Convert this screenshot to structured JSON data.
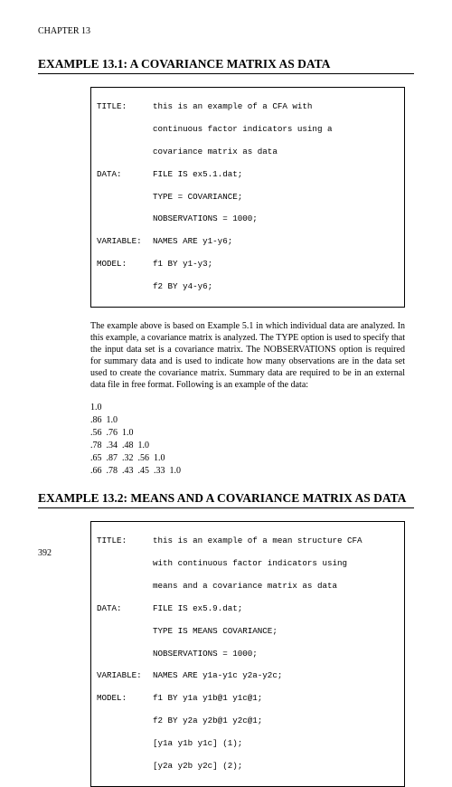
{
  "chapter_label": "CHAPTER 13",
  "ex1": {
    "heading": "EXAMPLE 13.1: A COVARIANCE MATRIX AS DATA",
    "code": {
      "title_label": "TITLE:",
      "title_l1": "this is an example of a CFA with",
      "title_l2": "continuous factor indicators using a",
      "title_l3": "covariance matrix as data",
      "data_label": "DATA:",
      "data_l1": "FILE IS ex5.1.dat;",
      "data_l2": "TYPE = COVARIANCE;",
      "data_l3": "NOBSERVATIONS = 1000;",
      "var_label": "VARIABLE:",
      "var_l1": "NAMES ARE y1-y6;",
      "model_label": "MODEL:",
      "model_l1": "f1 BY y1-y3;",
      "model_l2": "f2 BY y4-y6;"
    },
    "paragraph": "The example above is based on Example 5.1 in which individual data are analyzed.  In this example, a covariance matrix is analyzed.  The TYPE option is used to specify that the input data set is a covariance matrix.  The NOBSERVATIONS option is required for summary data and is used to indicate how many observations are in the data set used to create the covariance matrix.  Summary data are required to be in an external data file in free format.  Following is an example of the data:",
    "data_rows": [
      "1.0",
      ".86  1.0",
      ".56  .76  1.0",
      ".78  .34  .48  1.0",
      ".65  .87  .32  .56  1.0",
      ".66  .78  .43  .45  .33  1.0"
    ]
  },
  "ex2": {
    "heading": "EXAMPLE 13.2: MEANS AND A COVARIANCE MATRIX AS DATA",
    "code": {
      "title_label": "TITLE:",
      "title_l1": "this is an example of a mean structure CFA",
      "title_l2": "with continuous factor indicators using",
      "title_l3": "means and a covariance matrix as data",
      "data_label": "DATA:",
      "data_l1": "FILE IS ex5.9.dat;",
      "data_l2": "TYPE IS MEANS COVARIANCE;",
      "data_l3": "NOBSERVATIONS = 1000;",
      "var_label": "VARIABLE:",
      "var_l1": "NAMES ARE y1a-y1c y2a-y2c;",
      "model_label": "MODEL:",
      "model_l1": "f1 BY y1a y1b@1 y1c@1;",
      "model_l2": "f2 BY y2a y2b@1 y2c@1;",
      "model_l3": "[y1a y1b y1c] (1);",
      "model_l4": "[y2a y2b y2c] (2);"
    }
  },
  "page_number": "392"
}
